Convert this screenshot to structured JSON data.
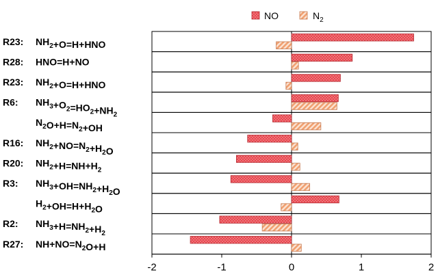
{
  "chart_data": {
    "type": "bar",
    "orientation": "horizontal",
    "legend": {
      "position": "top",
      "entries": [
        {
          "name": "NO",
          "sub": "",
          "color": "#e8474f",
          "pattern": "dots"
        },
        {
          "name": "N",
          "sub": "2",
          "color": "#f3a77d",
          "pattern": "hatch"
        }
      ]
    },
    "xlim": [
      -2,
      2
    ],
    "xticks": [
      "-2",
      "-1",
      "0",
      "1",
      "2"
    ],
    "grid": false,
    "categories": [
      {
        "id": "R23:",
        "parts": [
          [
            "NH"
          ],
          [
            "2",
            "sub"
          ],
          [
            "+O=H+HNO"
          ]
        ]
      },
      {
        "id": "R28:",
        "parts": [
          [
            "HNO=H+NO"
          ]
        ]
      },
      {
        "id": "R23:",
        "parts": [
          [
            "NH"
          ],
          [
            "2",
            "sub"
          ],
          [
            "+O=H+HNO"
          ]
        ]
      },
      {
        "id": "R6:",
        "parts": [
          [
            "NH"
          ],
          [
            "3",
            "sub"
          ],
          [
            "+O"
          ],
          [
            "2",
            "sub"
          ],
          [
            "=HO"
          ],
          [
            "2",
            "sub"
          ],
          [
            "+NH"
          ],
          [
            "2",
            "sub"
          ]
        ]
      },
      {
        "id": "",
        "parts": [
          [
            "N"
          ],
          [
            "2",
            "sub"
          ],
          [
            "O+H=N"
          ],
          [
            "2",
            "sub"
          ],
          [
            "+OH"
          ]
        ]
      },
      {
        "id": "R16:",
        "parts": [
          [
            "NH"
          ],
          [
            "2",
            "sub"
          ],
          [
            "+NO=N"
          ],
          [
            "2",
            "sub"
          ],
          [
            "+H"
          ],
          [
            "2",
            "sub"
          ],
          [
            "O"
          ]
        ]
      },
      {
        "id": "R20:",
        "parts": [
          [
            "NH"
          ],
          [
            "2",
            "sub"
          ],
          [
            "+H=NH+H"
          ],
          [
            "2",
            "sub"
          ]
        ]
      },
      {
        "id": "R3:",
        "parts": [
          [
            "NH"
          ],
          [
            "3",
            "sub"
          ],
          [
            "+OH=NH"
          ],
          [
            "2",
            "sub"
          ],
          [
            "+H"
          ],
          [
            "2",
            "sub"
          ],
          [
            "O"
          ]
        ]
      },
      {
        "id": "",
        "parts": [
          [
            "H"
          ],
          [
            "2",
            "sub"
          ],
          [
            "+OH=H+H"
          ],
          [
            "2",
            "sub"
          ],
          [
            "O"
          ]
        ]
      },
      {
        "id": "R2:",
        "parts": [
          [
            "NH"
          ],
          [
            "3",
            "sub"
          ],
          [
            "+H=NH"
          ],
          [
            "2",
            "sub"
          ],
          [
            "+H"
          ],
          [
            "2",
            "sub"
          ]
        ]
      },
      {
        "id": "R27:",
        "parts": [
          [
            "NH+NO=N"
          ],
          [
            "2",
            "sub"
          ],
          [
            "O+H"
          ]
        ]
      }
    ],
    "series": [
      {
        "name": "NO",
        "values": [
          1.75,
          0.87,
          0.7,
          0.67,
          -0.27,
          -0.63,
          -0.79,
          -0.87,
          0.68,
          -1.03,
          -1.45
        ]
      },
      {
        "name": "N2",
        "values": [
          -0.22,
          0.1,
          -0.08,
          0.65,
          0.42,
          0.09,
          0.12,
          0.26,
          -0.15,
          -0.42,
          0.14
        ]
      }
    ]
  }
}
